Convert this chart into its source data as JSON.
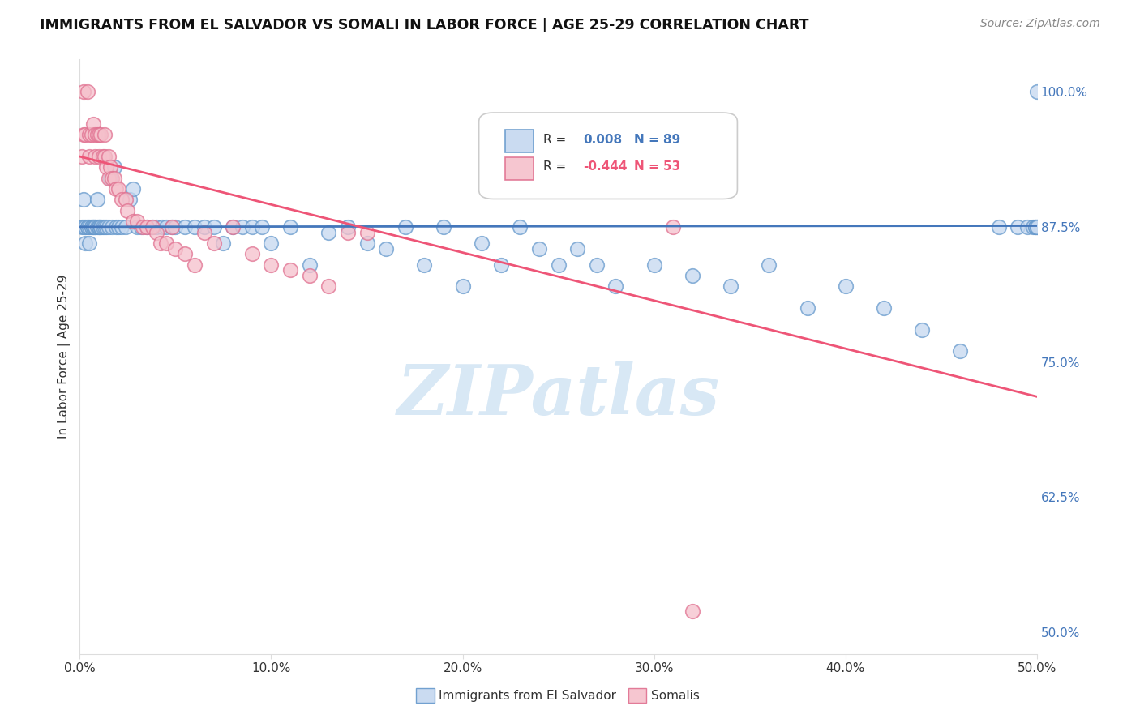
{
  "title": "IMMIGRANTS FROM EL SALVADOR VS SOMALI IN LABOR FORCE | AGE 25-29 CORRELATION CHART",
  "source": "Source: ZipAtlas.com",
  "ylabel": "In Labor Force | Age 25-29",
  "xlim": [
    0.0,
    0.5
  ],
  "ylim": [
    0.48,
    1.03
  ],
  "xtick_labels": [
    "0.0%",
    "10.0%",
    "20.0%",
    "30.0%",
    "40.0%",
    "50.0%"
  ],
  "xtick_vals": [
    0.0,
    0.1,
    0.2,
    0.3,
    0.4,
    0.5
  ],
  "ytick_labels": [
    "50.0%",
    "62.5%",
    "75.0%",
    "87.5%",
    "100.0%"
  ],
  "ytick_vals": [
    0.5,
    0.625,
    0.75,
    0.875,
    1.0
  ],
  "legend_label_blue": "Immigrants from El Salvador",
  "legend_label_pink": "Somalis",
  "R_blue": 0.008,
  "N_blue": 89,
  "R_pink": -0.444,
  "N_pink": 53,
  "blue_face_color": "#C5D8F0",
  "blue_edge_color": "#6699CC",
  "pink_face_color": "#F5C0CB",
  "pink_edge_color": "#E07090",
  "blue_line_color": "#4477BB",
  "pink_line_color": "#EE5577",
  "text_color": "#333333",
  "grid_color": "#DDDDDD",
  "background_color": "#FFFFFF",
  "watermark_text": "ZIPatlas",
  "watermark_color": "#D8E8F5",
  "blue_scatter_x": [
    0.001,
    0.002,
    0.002,
    0.003,
    0.003,
    0.004,
    0.004,
    0.005,
    0.005,
    0.006,
    0.006,
    0.007,
    0.007,
    0.008,
    0.008,
    0.009,
    0.009,
    0.01,
    0.01,
    0.011,
    0.011,
    0.012,
    0.013,
    0.014,
    0.015,
    0.016,
    0.017,
    0.018,
    0.019,
    0.02,
    0.022,
    0.024,
    0.026,
    0.028,
    0.03,
    0.032,
    0.035,
    0.038,
    0.04,
    0.043,
    0.045,
    0.048,
    0.05,
    0.055,
    0.06,
    0.065,
    0.07,
    0.075,
    0.08,
    0.085,
    0.09,
    0.095,
    0.1,
    0.11,
    0.12,
    0.13,
    0.14,
    0.15,
    0.16,
    0.17,
    0.18,
    0.19,
    0.2,
    0.21,
    0.22,
    0.23,
    0.24,
    0.25,
    0.26,
    0.27,
    0.28,
    0.3,
    0.32,
    0.34,
    0.36,
    0.38,
    0.4,
    0.42,
    0.44,
    0.46,
    0.48,
    0.49,
    0.495,
    0.498,
    0.499,
    0.499,
    0.5,
    0.5,
    0.5
  ],
  "blue_scatter_y": [
    0.875,
    0.9,
    0.875,
    0.875,
    0.86,
    0.875,
    0.875,
    0.875,
    0.86,
    0.875,
    0.875,
    0.875,
    0.875,
    0.875,
    0.875,
    0.875,
    0.9,
    0.875,
    0.875,
    0.875,
    0.875,
    0.875,
    0.875,
    0.875,
    0.875,
    0.92,
    0.875,
    0.93,
    0.875,
    0.875,
    0.875,
    0.875,
    0.9,
    0.91,
    0.875,
    0.875,
    0.875,
    0.875,
    0.875,
    0.875,
    0.875,
    0.875,
    0.875,
    0.875,
    0.875,
    0.875,
    0.875,
    0.86,
    0.875,
    0.875,
    0.875,
    0.875,
    0.86,
    0.875,
    0.84,
    0.87,
    0.875,
    0.86,
    0.855,
    0.875,
    0.84,
    0.875,
    0.82,
    0.86,
    0.84,
    0.875,
    0.855,
    0.84,
    0.855,
    0.84,
    0.82,
    0.84,
    0.83,
    0.82,
    0.84,
    0.8,
    0.82,
    0.8,
    0.78,
    0.76,
    0.875,
    0.875,
    0.875,
    0.875,
    0.875,
    0.875,
    0.875,
    0.875,
    1.0
  ],
  "pink_scatter_x": [
    0.001,
    0.002,
    0.002,
    0.003,
    0.004,
    0.005,
    0.005,
    0.006,
    0.007,
    0.008,
    0.008,
    0.009,
    0.01,
    0.01,
    0.011,
    0.012,
    0.013,
    0.013,
    0.014,
    0.015,
    0.015,
    0.016,
    0.017,
    0.018,
    0.019,
    0.02,
    0.022,
    0.024,
    0.025,
    0.028,
    0.03,
    0.033,
    0.035,
    0.038,
    0.04,
    0.042,
    0.045,
    0.048,
    0.05,
    0.055,
    0.06,
    0.065,
    0.07,
    0.08,
    0.09,
    0.1,
    0.11,
    0.12,
    0.13,
    0.14,
    0.15,
    0.31,
    0.32
  ],
  "pink_scatter_y": [
    0.94,
    0.96,
    1.0,
    0.96,
    1.0,
    0.96,
    0.94,
    0.96,
    0.97,
    0.96,
    0.94,
    0.96,
    0.94,
    0.96,
    0.96,
    0.94,
    0.94,
    0.96,
    0.93,
    0.94,
    0.92,
    0.93,
    0.92,
    0.92,
    0.91,
    0.91,
    0.9,
    0.9,
    0.89,
    0.88,
    0.88,
    0.875,
    0.875,
    0.875,
    0.87,
    0.86,
    0.86,
    0.875,
    0.855,
    0.85,
    0.84,
    0.87,
    0.86,
    0.875,
    0.85,
    0.84,
    0.835,
    0.83,
    0.82,
    0.87,
    0.87,
    0.875,
    0.52
  ],
  "blue_line_x": [
    0.0,
    0.5
  ],
  "blue_line_y": [
    0.875,
    0.876
  ],
  "pink_line_x": [
    0.0,
    0.5
  ],
  "pink_line_y": [
    0.94,
    0.718
  ]
}
